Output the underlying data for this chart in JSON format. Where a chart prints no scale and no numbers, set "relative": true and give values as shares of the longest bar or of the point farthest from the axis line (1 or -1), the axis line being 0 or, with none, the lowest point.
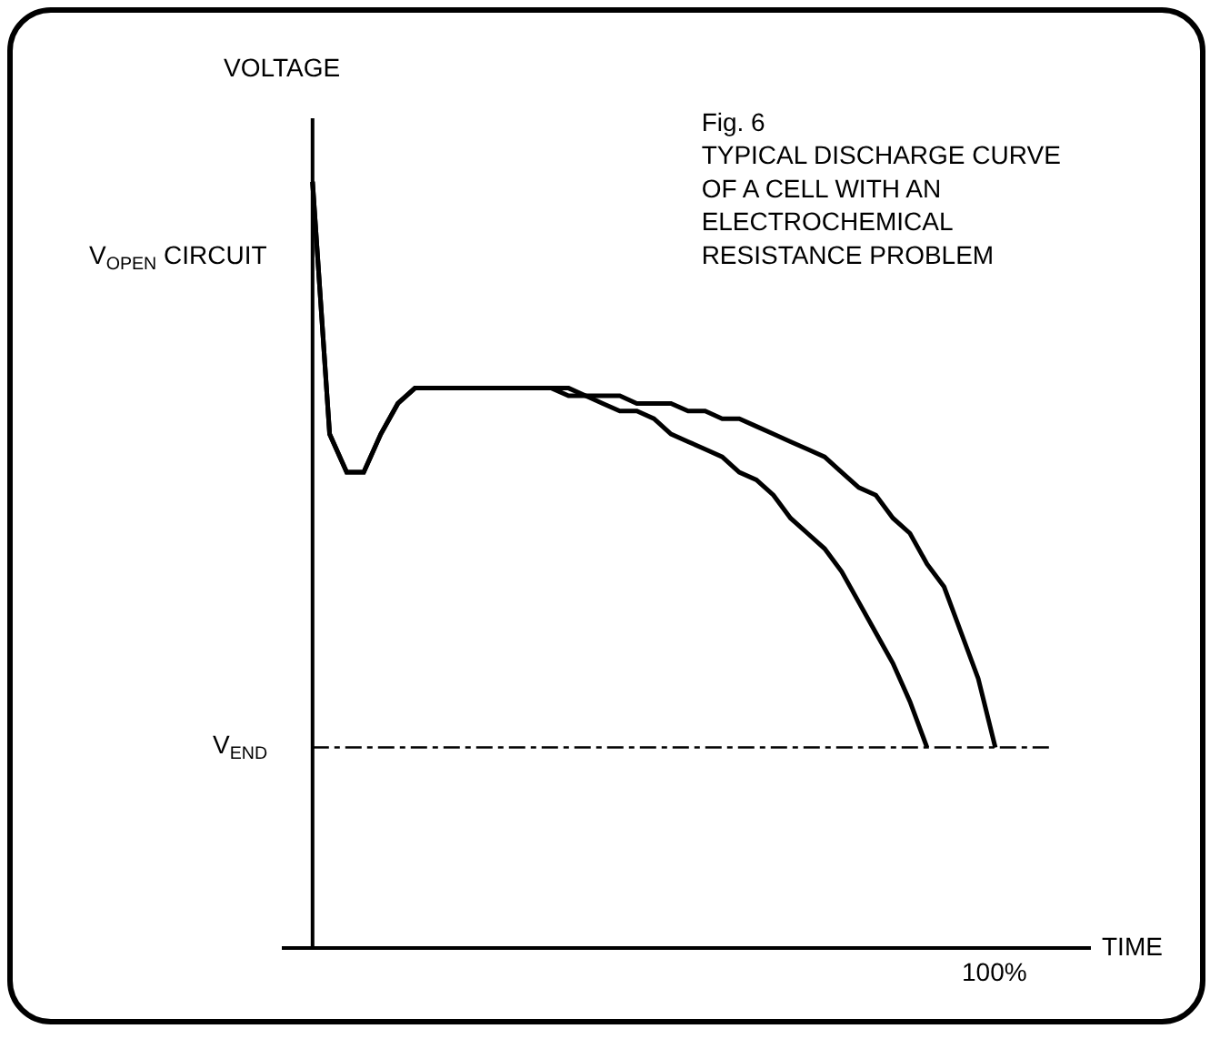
{
  "chart_data": {
    "type": "line",
    "relative": true,
    "title": "Fig. 6",
    "subtitle": "TYPICAL DISCHARGE CURVE OF A CELL WITH AN ELECTROCHEMICAL RESISTANCE PROBLEM",
    "xlabel": "TIME",
    "ylabel": "VOLTAGE",
    "annotations": [
      "V$_{OPEN}$ CIRCUIT",
      "100%"
    ],
    "categories": [
      null,
      null,
      null,
      null,
      null,
      null,
      null,
      null,
      null,
      null,
      null,
      null,
      null,
      null,
      null,
      null,
      null,
      null,
      null,
      null,
      null,
      null,
      null,
      null,
      null,
      null,
      null,
      null,
      null,
      null,
      null,
      null,
      null,
      null,
      null,
      null,
      null,
      null,
      null,
      null,
      null
    ],
    "series": [
      {
        "color": "#000000",
        "values": [
          1.0,
          0.67,
          0.62,
          0.62,
          0.67,
          0.71,
          0.73,
          0.73,
          0.73,
          0.73,
          0.73,
          0.73,
          0.73,
          0.73,
          0.73,
          0.72,
          0.72,
          0.71,
          0.7,
          0.7,
          0.69,
          0.67,
          0.66,
          0.65,
          0.64,
          0.62,
          0.61,
          0.59,
          0.56,
          0.54,
          0.52,
          0.49,
          0.45,
          0.41,
          0.37,
          0.32,
          0.26,
          null,
          null,
          null,
          null
        ]
      },
      {
        "color": "#000000",
        "values": [
          1.0,
          0.67,
          0.62,
          0.62,
          0.67,
          0.71,
          0.73,
          0.73,
          0.73,
          0.73,
          0.73,
          0.73,
          0.73,
          0.73,
          0.73,
          0.73,
          0.72,
          0.72,
          0.72,
          0.71,
          0.71,
          0.71,
          0.7,
          0.7,
          0.69,
          0.69,
          0.68,
          0.67,
          0.66,
          0.65,
          0.64,
          0.62,
          0.6,
          0.59,
          0.56,
          0.54,
          0.5,
          0.47,
          0.41,
          0.35,
          0.26
        ]
      }
    ],
    "ref_lines": [
      {
        "axis": "y",
        "value": 0.26,
        "label": "V$_{END}$",
        "color": "#000000",
        "line_style": "dashed"
      }
    ]
  }
}
